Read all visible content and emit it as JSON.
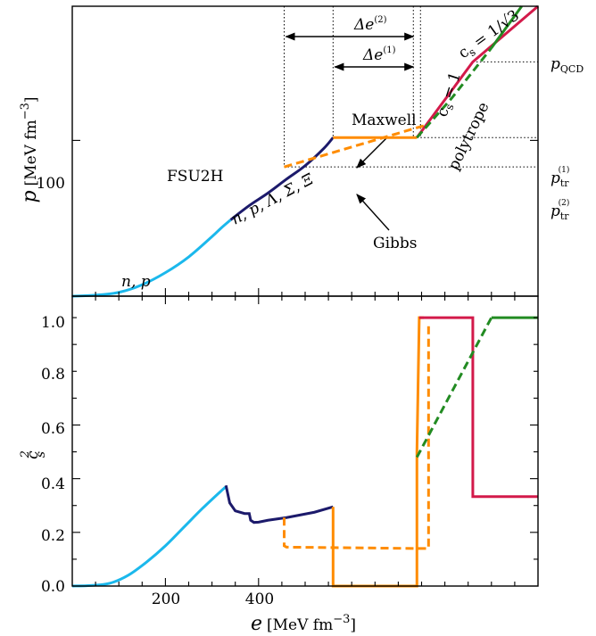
{
  "chart_data": [
    {
      "type": "line",
      "panel": "top",
      "xlabel_math": "e",
      "ylabel_math": "p",
      "ylabel_unit": "[MeV fm",
      "ylabel_exp": "−3",
      "ylabel_close": "]",
      "xlim": [
        0,
        1000
      ],
      "y_scale": "log",
      "ylim": [
        20,
        400
      ],
      "yticks": [
        100
      ],
      "ytick_labels": [
        "100"
      ],
      "series": [
        {
          "key": "nucleonic",
          "color": "#1bb8ec",
          "style": "solid",
          "x": [
            0,
            50,
            100,
            150,
            200,
            250,
            300,
            320,
            340
          ],
          "y": [
            20,
            20.2,
            20.8,
            22.5,
            25.5,
            30,
            37,
            40.5,
            44
          ]
        },
        {
          "key": "hyperonic",
          "color": "#1c1a6b",
          "style": "solid",
          "x": [
            340,
            380,
            420,
            460,
            500,
            540,
            560
          ],
          "y": [
            44,
            51,
            58,
            67,
            77,
            92,
            103
          ]
        },
        {
          "key": "maxwell",
          "color": "#ff8c00",
          "style": "solid",
          "x": [
            560,
            740
          ],
          "y": [
            103,
            103
          ]
        },
        {
          "key": "gibbs",
          "color": "#ff8c00",
          "style": "dashed",
          "x": [
            455,
            740,
            765
          ],
          "y": [
            76,
            114,
            118
          ]
        },
        {
          "key": "cs1",
          "color": "#d31a4a",
          "style": "solid",
          "x": [
            740,
            860,
            1000
          ],
          "y": [
            103,
            225,
            400
          ]
        },
        {
          "key": "polytrope",
          "color": "#228b22",
          "style": "dashed",
          "x": [
            740,
            815,
            900
          ],
          "y": [
            103,
            155,
            260
          ]
        },
        {
          "key": "polytrope-cont",
          "color": "#228b22",
          "style": "solid",
          "x": [
            900,
            965
          ],
          "y": [
            260,
            400
          ]
        }
      ],
      "reference_levels": {
        "p_QCD": 225,
        "p_tr1": 103,
        "p_tr2": 76,
        "e_gibbs_start": 455,
        "e_maxwell_start": 560,
        "e_transition_end": 740
      },
      "annotations": {
        "fsu2h": "FSU2H",
        "np": "n, p",
        "hyperons": "n, p, Λ, Σ, Ξ",
        "maxwell": "Maxwell",
        "gibbs": "Gibbs",
        "polytrope": "polytrope",
        "cs1": "c",
        "cs1_sub": "s",
        "cs1_rest": " = 1",
        "cs_sqrt": "c",
        "cs_sqrt_sub": "s",
        "cs_sqrt_rest": " = 1/√3",
        "delta_e": "Δe",
        "delta_e2_sup": "(2)",
        "delta_e1_sup": "(1)",
        "p_qcd": "p",
        "p_qcd_sub": "QCD",
        "p_tr1": "p",
        "p_tr1_sub": "tr",
        "p_tr1_sup": "(1)",
        "p_tr2": "p",
        "p_tr2_sub": "tr",
        "p_tr2_sup": "(2)"
      }
    },
    {
      "type": "line",
      "panel": "bottom",
      "xlabel_math": "e",
      "xlabel_unit": "[MeV fm",
      "xlabel_exp": "−3",
      "xlabel_close": "]",
      "ylabel_math": "c",
      "ylabel_sub": "s",
      "ylabel_sup": "2",
      "xlim": [
        0,
        1000
      ],
      "ylim": [
        0,
        1.08
      ],
      "xticks": [
        200,
        400
      ],
      "xtick_labels": [
        "200",
        "400"
      ],
      "yticks": [
        0.0,
        0.2,
        0.4,
        0.6,
        0.8,
        1.0
      ],
      "ytick_labels": [
        "0.0",
        "0.2",
        "0.4",
        "0.6",
        "0.8",
        "1.0"
      ],
      "series": [
        {
          "key": "nucleonic",
          "color": "#1bb8ec",
          "style": "solid",
          "x": [
            0,
            40,
            80,
            120,
            160,
            200,
            240,
            280,
            320,
            330
          ],
          "y": [
            0,
            0.002,
            0.01,
            0.04,
            0.09,
            0.15,
            0.22,
            0.29,
            0.355,
            0.37
          ]
        },
        {
          "key": "hyperonic",
          "color": "#1c1a6b",
          "style": "solid",
          "x": [
            330,
            338,
            350,
            370,
            380,
            383,
            390,
            400,
            420,
            460,
            520,
            560
          ],
          "y": [
            0.375,
            0.31,
            0.28,
            0.27,
            0.27,
            0.245,
            0.237,
            0.238,
            0.245,
            0.255,
            0.275,
            0.295
          ]
        },
        {
          "key": "maxwell",
          "color": "#ff8c00",
          "style": "solid",
          "x": [
            560,
            560,
            740,
            740,
            745,
            755
          ],
          "y": [
            0.295,
            0,
            0,
            0.5,
            1.0,
            1.0
          ]
        },
        {
          "key": "gibbs",
          "color": "#ff8c00",
          "style": "dashed",
          "x": [
            455,
            455,
            460,
            740,
            765,
            765
          ],
          "y": [
            0.255,
            0.15,
            0.145,
            0.14,
            0.14,
            0.97
          ]
        },
        {
          "key": "cs1",
          "color": "#d31a4a",
          "style": "solid",
          "x": [
            745,
            860,
            860,
            1000
          ],
          "y": [
            1.0,
            1.0,
            0.333,
            0.333
          ]
        },
        {
          "key": "polytrope",
          "color": "#228b22",
          "style": "dashed",
          "x": [
            740,
            900
          ],
          "y": [
            0.48,
            1.0
          ]
        },
        {
          "key": "polytrope-cont",
          "color": "#228b22",
          "style": "solid",
          "x": [
            900,
            1000
          ],
          "y": [
            1.0,
            1.0
          ]
        }
      ]
    }
  ]
}
